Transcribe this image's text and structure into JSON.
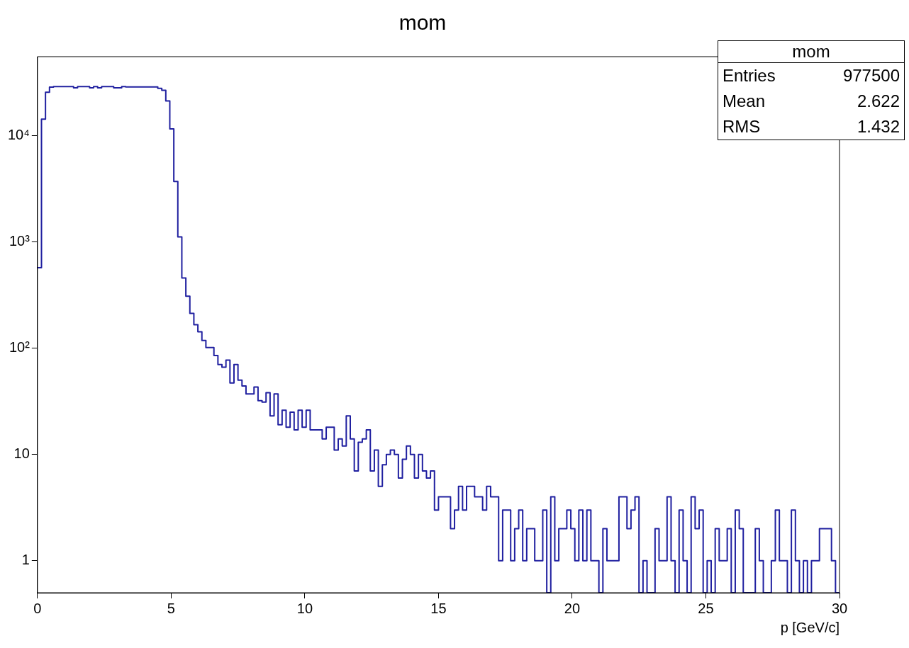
{
  "chart_data": {
    "type": "histogram",
    "title": "mom",
    "xlabel": "p [GeV/c]",
    "color": "#2020a0",
    "bins": [
      0,
      0.15,
      0.3,
      0.45,
      0.6,
      0.75,
      0.9,
      1.05,
      1.2,
      1.35,
      1.5,
      1.65,
      1.8,
      1.95,
      2.1,
      2.25,
      2.4,
      2.55,
      2.7,
      2.85,
      3,
      3.15,
      3.3,
      3.45,
      3.6,
      3.75,
      3.9,
      4.05,
      4.2,
      4.35,
      4.5,
      4.65,
      4.8,
      4.95,
      5.1,
      5.25,
      5.4,
      5.55,
      5.7,
      5.85,
      6,
      6.15,
      6.3,
      6.45,
      6.6,
      6.75,
      6.9,
      7.05,
      7.2,
      7.35,
      7.5,
      7.65,
      7.8,
      7.95,
      8.1,
      8.25,
      8.4,
      8.55,
      8.7,
      8.85,
      9,
      9.15,
      9.3,
      9.45,
      9.6,
      9.75,
      9.9,
      10.05,
      10.2,
      10.35,
      10.5,
      10.65,
      10.8,
      10.95,
      11.1,
      11.25,
      11.4,
      11.55,
      11.7,
      11.85,
      12,
      12.15,
      12.3,
      12.45,
      12.6,
      12.75,
      12.9,
      13.05,
      13.2,
      13.35,
      13.5,
      13.65,
      13.8,
      13.95,
      14.1,
      14.25,
      14.4,
      14.55,
      14.7,
      14.85,
      15,
      15.15,
      15.3,
      15.45,
      15.6,
      15.75,
      15.9,
      16.05,
      16.2,
      16.35,
      16.5,
      16.65,
      16.8,
      16.95,
      17.1,
      17.25,
      17.4,
      17.55,
      17.7,
      17.85,
      18,
      18.15,
      18.3,
      18.45,
      18.6,
      18.75,
      18.9,
      19.05,
      19.2,
      19.35,
      19.5,
      19.65,
      19.8,
      19.95,
      20.1,
      20.25,
      20.4,
      20.55,
      20.7,
      20.85,
      21,
      21.15,
      21.3,
      21.45,
      21.6,
      21.75,
      21.9,
      22.05,
      22.2,
      22.35,
      22.5,
      22.65,
      22.8,
      22.95,
      23.1,
      23.25,
      23.4,
      23.55,
      23.7,
      23.85,
      24,
      24.15,
      24.3,
      24.45,
      24.6,
      24.75,
      24.9,
      25.05,
      25.2,
      25.35,
      25.5,
      25.65,
      25.8,
      25.95,
      26.1,
      26.25,
      26.4,
      26.55,
      26.7,
      26.85,
      27,
      27.15,
      27.3,
      27.45,
      27.6,
      27.75,
      27.9,
      28.05,
      28.2,
      28.35,
      28.5,
      28.65,
      28.8,
      28.95,
      29.1,
      29.25,
      29.4,
      29.55,
      29.7,
      29.85,
      30
    ],
    "values": [
      570,
      14200,
      25500,
      28400,
      28800,
      28800,
      28800,
      28800,
      28800,
      28000,
      28800,
      28800,
      28800,
      28000,
      28800,
      28000,
      28800,
      28800,
      28800,
      28000,
      28000,
      28800,
      28500,
      28500,
      28500,
      28500,
      28500,
      28500,
      28500,
      28500,
      27700,
      26500,
      21100,
      11500,
      3690,
      1110,
      457,
      307,
      212,
      166,
      142,
      118,
      101,
      101,
      85,
      70,
      66,
      77,
      47,
      70,
      50,
      44,
      37,
      37,
      43,
      32,
      31,
      38,
      23,
      37,
      19,
      26,
      18,
      25,
      17,
      26,
      18,
      26,
      17,
      17,
      17,
      14,
      18,
      18,
      11,
      14,
      12,
      23,
      14,
      7,
      13,
      14,
      17,
      7,
      11,
      5,
      8,
      10,
      11,
      10,
      6,
      9,
      12,
      10,
      6,
      10,
      7,
      6,
      7,
      3,
      4,
      4,
      4,
      2,
      3,
      5,
      3,
      5,
      5,
      4,
      4,
      3,
      5,
      4,
      4,
      1,
      3,
      3,
      1,
      2,
      3,
      1,
      2,
      2,
      1,
      1,
      3,
      null,
      4,
      1,
      2,
      2,
      3,
      2,
      1,
      3,
      1,
      3,
      1,
      1,
      null,
      2,
      1,
      1,
      1,
      4,
      4,
      2,
      3,
      4,
      null,
      1,
      null,
      null,
      2,
      1,
      1,
      4,
      1,
      null,
      3,
      1,
      null,
      4,
      2,
      3,
      null,
      1,
      null,
      2,
      1,
      1,
      2,
      null,
      3,
      2,
      null,
      null,
      null,
      2,
      1,
      null,
      null,
      1,
      3,
      1,
      1,
      null,
      3,
      1,
      null,
      1,
      null,
      1,
      1,
      2,
      2,
      2,
      1,
      null
    ],
    "xlim": [
      0,
      30
    ],
    "xticks": [
      0,
      5,
      10,
      15,
      20,
      25,
      30
    ],
    "ylim": [
      0.5,
      55000
    ],
    "log": true,
    "yticks": [
      1,
      10,
      {
        "value": 100,
        "label": "10²"
      },
      {
        "value": 1000,
        "label": "10³"
      },
      {
        "value": 10000,
        "label": "10⁴"
      }
    ],
    "grid": false,
    "legend": false,
    "annotations": [
      "mom",
      "Entries",
      "977500",
      "Mean",
      "2.622",
      "RMS",
      "1.432"
    ]
  }
}
